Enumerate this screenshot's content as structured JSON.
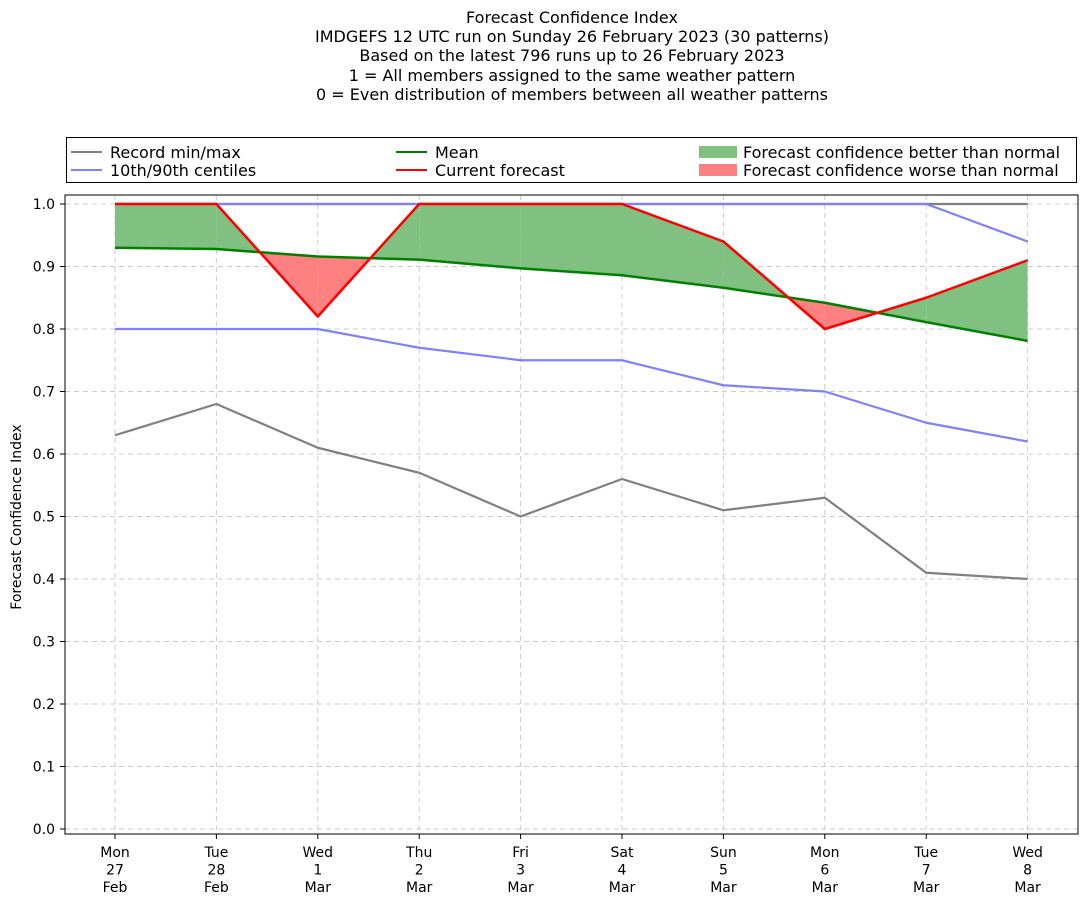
{
  "title_lines": [
    "Forecast Confidence Index",
    "IMDGEFS 12 UTC run on Sunday 26 February 2023 (30 patterns)",
    "Based on the latest 796 runs up to 26 February 2023",
    "1 = All members assigned to the same weather pattern",
    "0 = Even distribution of members between all weather patterns"
  ],
  "legend": {
    "record": "Record min/max",
    "centiles": "10th/90th centiles",
    "mean": "Mean",
    "current": "Current forecast",
    "better": "Forecast confidence better than normal",
    "worse": "Forecast confidence worse than normal"
  },
  "colors": {
    "record": "#808080",
    "centiles": "#8080ff",
    "mean": "#008000",
    "current": "#ff0000",
    "better": "#80c080",
    "worse": "#ff8080"
  },
  "chart_data": {
    "type": "line",
    "ylabel": "Forecast Confidence Index",
    "ylim": [
      0.0,
      1.0
    ],
    "y_ticks": [
      "0.0",
      "0.1",
      "0.2",
      "0.3",
      "0.4",
      "0.5",
      "0.6",
      "0.7",
      "0.8",
      "0.9",
      "1.0"
    ],
    "grid": true,
    "legend_position": "top",
    "categories": [
      [
        "Mon",
        "27",
        "Feb"
      ],
      [
        "Tue",
        "28",
        "Feb"
      ],
      [
        "Wed",
        "1",
        "Mar"
      ],
      [
        "Thu",
        "2",
        "Mar"
      ],
      [
        "Fri",
        "3",
        "Mar"
      ],
      [
        "Sat",
        "4",
        "Mar"
      ],
      [
        "Sun",
        "5",
        "Mar"
      ],
      [
        "Mon",
        "6",
        "Mar"
      ],
      [
        "Tue",
        "7",
        "Mar"
      ],
      [
        "Wed",
        "8",
        "Mar"
      ]
    ],
    "series": [
      {
        "name": "Record min/max",
        "role": "record_max",
        "values": [
          1.0,
          1.0,
          1.0,
          1.0,
          1.0,
          1.0,
          1.0,
          1.0,
          1.0,
          1.0
        ]
      },
      {
        "name": "Record min/max",
        "role": "record_min",
        "values": [
          0.63,
          0.68,
          0.61,
          0.57,
          0.5,
          0.56,
          0.51,
          0.53,
          0.41,
          0.4
        ]
      },
      {
        "name": "10th/90th centiles",
        "role": "p90",
        "values": [
          1.0,
          1.0,
          1.0,
          1.0,
          1.0,
          1.0,
          1.0,
          1.0,
          1.0,
          0.94
        ]
      },
      {
        "name": "10th/90th centiles",
        "role": "p10",
        "values": [
          0.8,
          0.8,
          0.8,
          0.77,
          0.75,
          0.75,
          0.71,
          0.7,
          0.65,
          0.62
        ]
      },
      {
        "name": "Mean",
        "role": "mean",
        "values": [
          0.93,
          0.928,
          0.916,
          0.911,
          0.897,
          0.886,
          0.866,
          0.842,
          0.811,
          0.781
        ]
      },
      {
        "name": "Current forecast",
        "role": "current",
        "values": [
          1.0,
          1.0,
          0.82,
          1.0,
          1.0,
          1.0,
          0.94,
          0.8,
          0.85,
          0.91
        ]
      }
    ]
  }
}
